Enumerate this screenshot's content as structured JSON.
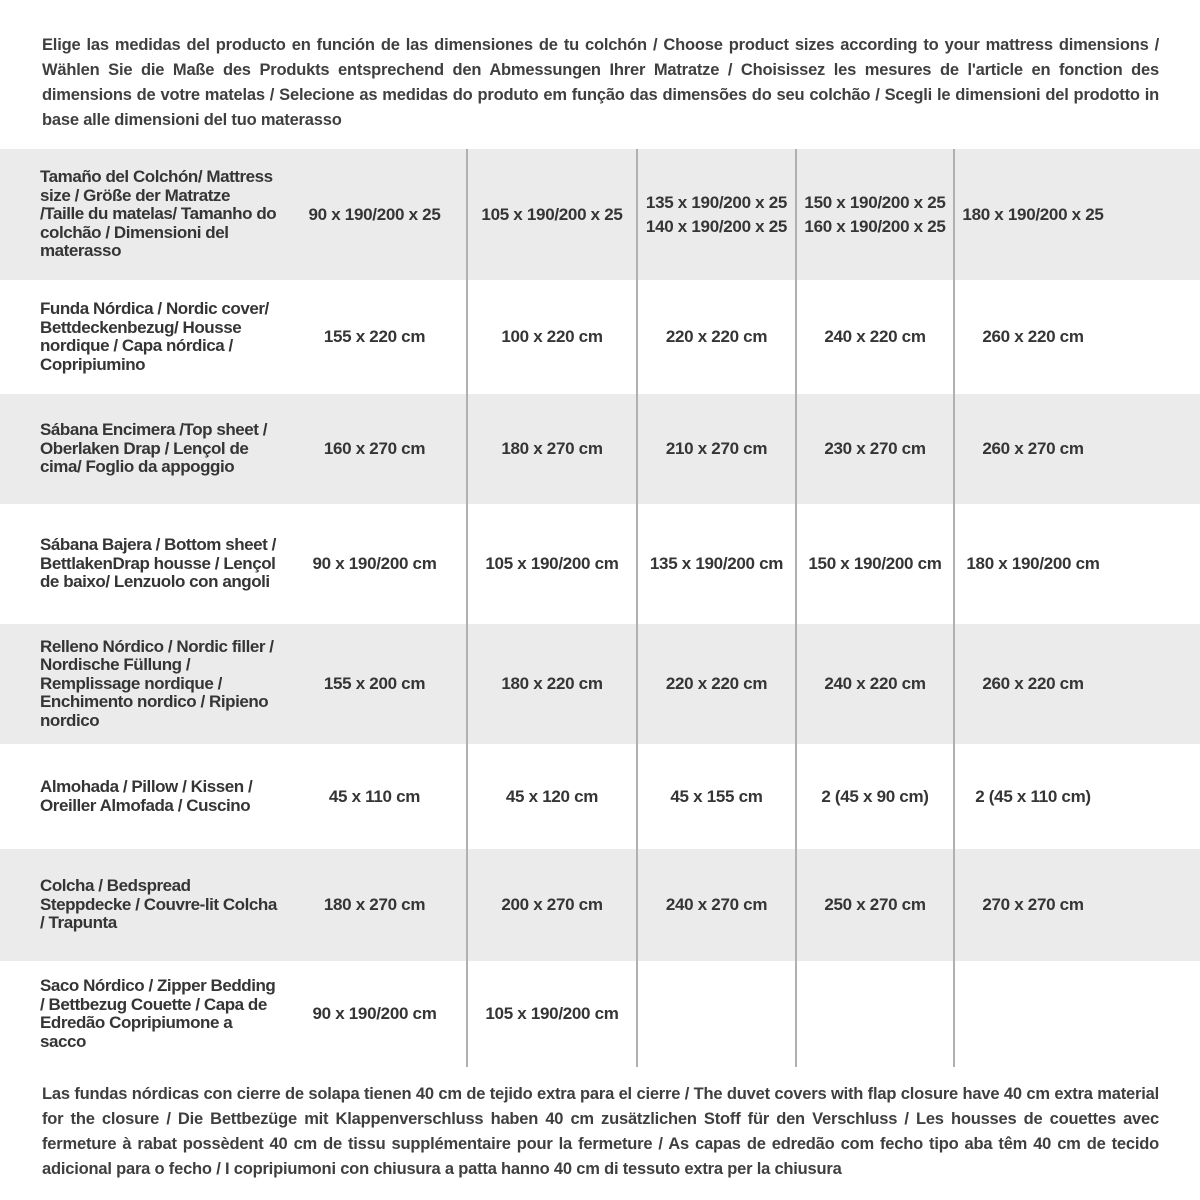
{
  "intro": "Elige las medidas del producto en función de las dimensiones de tu colchón / Choose product sizes according to your mattress dimensions / Wählen Sie die Maße des Produkts entsprechend den Abmessungen Ihrer Matratze / Choisissez les mesures de l'article en fonction des dimensions de votre matelas / Selecione as medidas do produto em função das dimensões do seu colchão / Scegli le dimensioni del prodotto in base alle dimensioni del tuo materasso",
  "footnote": "Las fundas nórdicas con cierre de solapa tienen 40 cm de tejido extra para el cierre  / The duvet covers with flap closure have 40 cm extra material for the closure / Die Bettbezüge mit Klappenverschluss haben 40 cm zusätzlichen Stoff für den Verschluss / Les housses de couettes avec fermeture à rabat possèdent 40 cm de tissu supplémentaire pour la fermeture / As capas de edredão com fecho tipo aba têm 40 cm de tecido adicional para o fecho / I copripiumoni con chiusura a patta hanno 40 cm di tessuto extra per la chiusura",
  "colors": {
    "row_alt": "#ebebeb",
    "divider": "#b0b0b0",
    "text": "#353535"
  },
  "table": {
    "rows": [
      {
        "label": "Tamaño del Colchón/ Mattress size / Größe der Matratze /Taille du matelas/ Tamanho do colchão / Dimensioni del materasso",
        "values": [
          "90 x 190/200 x 25",
          "105 x 190/200 x 25",
          "135 x 190/200 x 25\n140 x 190/200 x 25",
          "150 x 190/200 x 25\n160 x 190/200 x 25",
          "180 x 190/200 x 25"
        ]
      },
      {
        "label": "Funda Nórdica /  Nordic cover/ Bettdeckenbezug/ Housse nordique  / Capa nórdica / Copripiumino",
        "values": [
          "155 x 220 cm",
          "100 x 220 cm",
          "220 x 220 cm",
          "240 x 220 cm",
          "260 x 220 cm"
        ]
      },
      {
        "label": "Sábana Encimera /Top sheet / Oberlaken Drap / Lençol de cima/ Foglio da appoggio",
        "values": [
          "160 x 270 cm",
          "180 x 270 cm",
          "210 x 270 cm",
          "230 x 270 cm",
          "260 x 270 cm"
        ]
      },
      {
        "label": "Sábana Bajera / Bottom sheet / BettlakenDrap housse / Lençol de baixo/ Lenzuolo con angoli",
        "values": [
          "90 x 190/200 cm",
          "105 x 190/200 cm",
          "135 x 190/200 cm",
          "150 x 190/200 cm",
          "180 x 190/200 cm"
        ]
      },
      {
        "label": "Relleno Nórdico / Nordic filler / Nordische Füllung / Remplissage nordique / Enchimento nordico / Ripieno nordico",
        "values": [
          "155 x 200 cm",
          "180 x 220 cm",
          "220 x 220 cm",
          "240 x 220 cm",
          "260 x 220 cm"
        ]
      },
      {
        "label": "Almohada  / Pillow / Kissen / Oreiller Almofada / Cuscino",
        "values": [
          "45 x 110 cm",
          "45 x 120 cm",
          "45 x 155 cm",
          "2 (45 x 90 cm)",
          "2 (45 x 110 cm)"
        ]
      },
      {
        "label": "Colcha / Bedspread Steppdecke / Couvre-lit Colcha / Trapunta",
        "values": [
          "180 x 270 cm",
          "200 x 270 cm",
          "240 x 270 cm",
          "250 x 270 cm",
          "270 x 270 cm"
        ]
      },
      {
        "label": "Saco Nórdico / Zipper Bedding / Bettbezug Couette  / Capa de Edredão Copripiumone a sacco",
        "values": [
          "90 x 190/200 cm",
          "105 x 190/200 cm",
          "",
          "",
          ""
        ]
      }
    ]
  }
}
